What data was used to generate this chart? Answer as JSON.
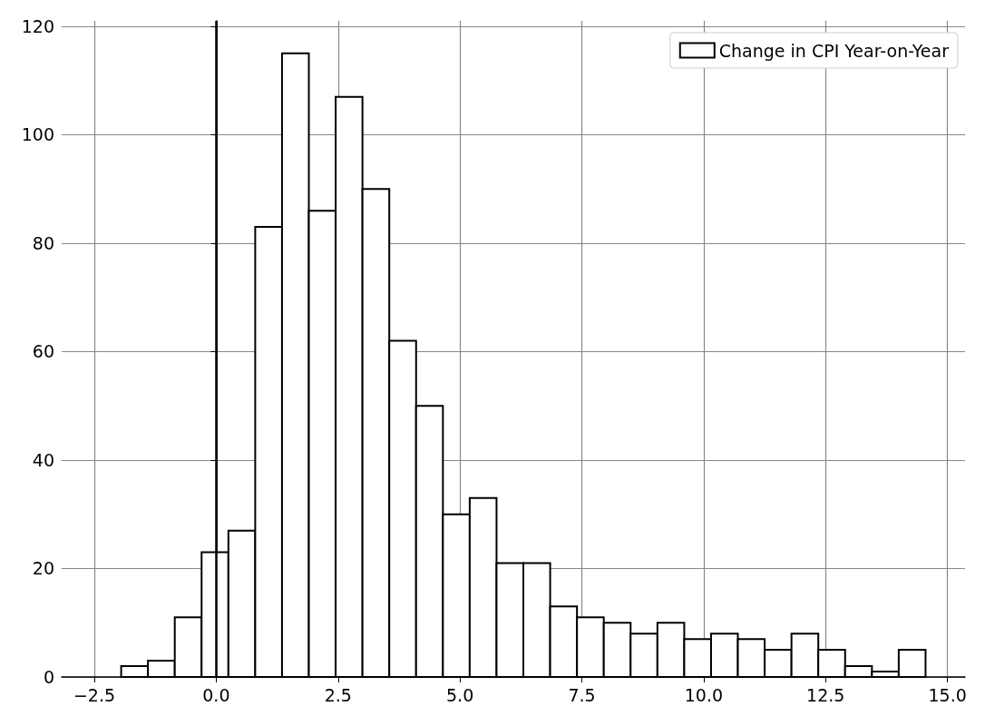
{
  "chart_data": {
    "type": "histogram",
    "bins": [
      -1.95,
      -1.4,
      -0.85,
      -0.3,
      0.25,
      0.8,
      1.35,
      1.9,
      2.45,
      3.0,
      3.55,
      4.1,
      4.65,
      5.2,
      5.75,
      6.3,
      6.85,
      7.4,
      7.95,
      8.5,
      9.05,
      9.6,
      10.15,
      10.7,
      11.25,
      11.8,
      12.35,
      12.9,
      13.45,
      14.0,
      14.55
    ],
    "series": [
      {
        "name": "Change in CPI Year-on-Year",
        "color": "#ffffff",
        "values": [
          2,
          3,
          11,
          23,
          27,
          83,
          115,
          86,
          107,
          90,
          62,
          50,
          30,
          33,
          21,
          21,
          13,
          11,
          10,
          8,
          10,
          7,
          8,
          7,
          5,
          8,
          5,
          2,
          1,
          5
        ]
      }
    ],
    "xlim": [
      -3.17,
      15.36
    ],
    "ylim": [
      0,
      121
    ],
    "xticks": [
      {
        "value": -2.5,
        "label": "−2.5"
      },
      {
        "value": 0,
        "label": "0.0"
      },
      {
        "value": 2.5,
        "label": "2.5"
      },
      {
        "value": 5,
        "label": "5.0"
      },
      {
        "value": 7.5,
        "label": "7.5"
      },
      {
        "value": 10,
        "label": "10.0"
      },
      {
        "value": 12.5,
        "label": "12.5"
      },
      {
        "value": 15,
        "label": "15.0"
      }
    ],
    "yticks": [
      0,
      20,
      40,
      60,
      80,
      100,
      120
    ],
    "ref_lines": [
      {
        "axis": "x",
        "value": 0,
        "color": "#000000"
      }
    ],
    "grid": true,
    "legend": "top right"
  }
}
